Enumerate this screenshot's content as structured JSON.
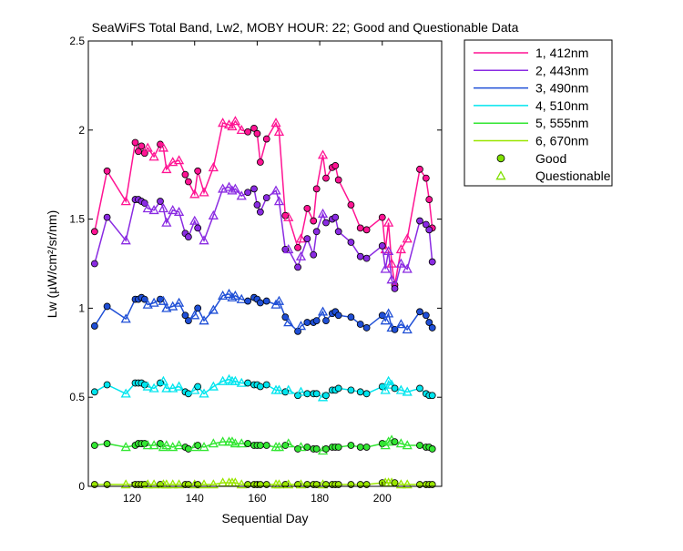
{
  "chart_data": {
    "type": "line",
    "title": "SeaWiFS Total Band,  Lw2, MOBY HOUR: 22;  Good and Questionable Data",
    "xlabel": "Sequential Day",
    "ylabel": "Lw (µW/cm²/sr/nm)",
    "xlim": [
      106,
      219
    ],
    "ylim": [
      0,
      2.5
    ],
    "xticks": [
      120,
      140,
      160,
      180,
      200
    ],
    "xtick_labels": [
      "120",
      "140",
      "160",
      "180",
      "200"
    ],
    "yticks": [
      0,
      0.5,
      1,
      1.5,
      2,
      2.5
    ],
    "ytick_labels": [
      "0",
      "0.5",
      "1",
      "1.5",
      "2",
      "2.5"
    ],
    "grid": false,
    "legend_position": "outside-right",
    "x": [
      108,
      112,
      118,
      121,
      122,
      123,
      124,
      125,
      127,
      129,
      130,
      131,
      133,
      135,
      137,
      138,
      140,
      141,
      143,
      146,
      149,
      151,
      152,
      153,
      155,
      157,
      159,
      160,
      161,
      163,
      166,
      167,
      169,
      170,
      173,
      174,
      176,
      178,
      179,
      181,
      182,
      184,
      185,
      186,
      190,
      193,
      195,
      200,
      201,
      202,
      203,
      204,
      206,
      208,
      212,
      214,
      215,
      216
    ],
    "series": [
      {
        "name": "1, 412nm",
        "color": "#ff1493",
        "values": [
          1.43,
          1.77,
          1.6,
          1.93,
          1.88,
          1.91,
          1.87,
          1.9,
          1.85,
          1.92,
          1.9,
          1.78,
          1.82,
          1.83,
          1.75,
          1.71,
          1.64,
          1.77,
          1.65,
          1.79,
          2.04,
          2.03,
          2.02,
          2.05,
          2.0,
          1.99,
          2.01,
          1.98,
          1.82,
          1.95,
          2.04,
          1.99,
          1.52,
          1.51,
          1.34,
          1.39,
          1.56,
          1.49,
          1.67,
          1.86,
          1.73,
          1.79,
          1.8,
          1.72,
          1.58,
          1.45,
          1.44,
          1.51,
          1.33,
          1.48,
          1.25,
          1.13,
          1.33,
          1.39,
          1.78,
          1.73,
          1.61,
          1.45
        ]
      },
      {
        "name": "2, 443nm",
        "color": "#8a2be2",
        "values": [
          1.25,
          1.51,
          1.38,
          1.61,
          1.61,
          1.6,
          1.59,
          1.56,
          1.55,
          1.6,
          1.56,
          1.48,
          1.55,
          1.54,
          1.42,
          1.4,
          1.49,
          1.45,
          1.38,
          1.52,
          1.67,
          1.68,
          1.66,
          1.67,
          1.63,
          1.65,
          1.67,
          1.58,
          1.54,
          1.62,
          1.66,
          1.6,
          1.33,
          1.33,
          1.23,
          1.29,
          1.39,
          1.3,
          1.43,
          1.53,
          1.48,
          1.5,
          1.51,
          1.43,
          1.37,
          1.29,
          1.28,
          1.35,
          1.22,
          1.32,
          1.16,
          1.11,
          1.25,
          1.22,
          1.49,
          1.47,
          1.44,
          1.26
        ]
      },
      {
        "name": "3, 490nm",
        "color": "#1f4fd6",
        "values": [
          0.9,
          1.01,
          0.94,
          1.05,
          1.05,
          1.06,
          1.05,
          1.02,
          1.03,
          1.05,
          1.04,
          1.0,
          1.01,
          1.03,
          0.96,
          0.93,
          0.96,
          1.0,
          0.93,
          0.99,
          1.07,
          1.08,
          1.06,
          1.07,
          1.05,
          1.04,
          1.06,
          1.05,
          1.03,
          1.04,
          1.02,
          1.04,
          0.95,
          0.92,
          0.87,
          0.9,
          0.92,
          0.92,
          0.93,
          0.98,
          0.93,
          0.97,
          0.98,
          0.96,
          0.95,
          0.91,
          0.89,
          0.96,
          0.93,
          0.97,
          0.89,
          0.88,
          0.91,
          0.88,
          0.98,
          0.96,
          0.92,
          0.89
        ]
      },
      {
        "name": "4, 510nm",
        "color": "#00e5ee",
        "values": [
          0.53,
          0.57,
          0.52,
          0.58,
          0.58,
          0.58,
          0.57,
          0.56,
          0.55,
          0.58,
          0.59,
          0.55,
          0.55,
          0.56,
          0.53,
          0.52,
          0.54,
          0.56,
          0.52,
          0.56,
          0.59,
          0.6,
          0.59,
          0.59,
          0.58,
          0.58,
          0.57,
          0.57,
          0.56,
          0.57,
          0.54,
          0.54,
          0.53,
          0.54,
          0.51,
          0.53,
          0.52,
          0.52,
          0.52,
          0.5,
          0.51,
          0.54,
          0.54,
          0.55,
          0.54,
          0.53,
          0.52,
          0.56,
          0.54,
          0.59,
          0.57,
          0.55,
          0.54,
          0.53,
          0.55,
          0.52,
          0.51,
          0.51
        ]
      },
      {
        "name": "5, 555nm",
        "color": "#33e633",
        "values": [
          0.23,
          0.24,
          0.22,
          0.23,
          0.24,
          0.24,
          0.24,
          0.23,
          0.23,
          0.24,
          0.22,
          0.23,
          0.22,
          0.23,
          0.22,
          0.21,
          0.22,
          0.23,
          0.22,
          0.24,
          0.25,
          0.25,
          0.25,
          0.24,
          0.24,
          0.24,
          0.23,
          0.23,
          0.23,
          0.23,
          0.22,
          0.22,
          0.23,
          0.24,
          0.21,
          0.22,
          0.22,
          0.21,
          0.21,
          0.2,
          0.21,
          0.22,
          0.22,
          0.22,
          0.23,
          0.22,
          0.22,
          0.24,
          0.23,
          0.25,
          0.26,
          0.25,
          0.24,
          0.23,
          0.23,
          0.22,
          0.22,
          0.21
        ]
      },
      {
        "name": "6, 670nm",
        "color": "#9ae600",
        "values": [
          0.01,
          0.01,
          0.01,
          0.01,
          0.01,
          0.01,
          0.01,
          0.01,
          0.01,
          0.01,
          0.01,
          0.01,
          0.01,
          0.01,
          0.01,
          0.01,
          0.01,
          0.01,
          0.01,
          0.01,
          0.02,
          0.02,
          0.02,
          0.02,
          0.01,
          0.01,
          0.01,
          0.01,
          0.01,
          0.01,
          0.01,
          0.01,
          0.01,
          0.01,
          0.01,
          0.01,
          0.01,
          0.01,
          0.01,
          0.01,
          0.01,
          0.01,
          0.01,
          0.01,
          0.01,
          0.01,
          0.01,
          0.02,
          0.02,
          0.02,
          0.02,
          0.02,
          0.01,
          0.01,
          0.01,
          0.01,
          0.01,
          0.01
        ]
      }
    ],
    "quality": [
      "G",
      "G",
      "Q",
      "G",
      "G",
      "G",
      "G",
      "Q",
      "Q",
      "G",
      "Q",
      "Q",
      "Q",
      "Q",
      "G",
      "G",
      "Q",
      "G",
      "Q",
      "Q",
      "Q",
      "Q",
      "Q",
      "Q",
      "Q",
      "G",
      "G",
      "G",
      "G",
      "G",
      "Q",
      "Q",
      "G",
      "Q",
      "G",
      "Q",
      "G",
      "G",
      "G",
      "Q",
      "G",
      "G",
      "G",
      "G",
      "G",
      "G",
      "G",
      "G",
      "Q",
      "Q",
      "Q",
      "G",
      "Q",
      "Q",
      "G",
      "G",
      "G",
      "G"
    ],
    "quality_legend": {
      "G": "Good",
      "Q": "Questionable"
    },
    "legend": [
      "1, 412nm",
      "2, 443nm",
      "3, 490nm",
      "4, 510nm",
      "5, 555nm",
      "6, 670nm",
      "Good",
      "Questionable"
    ],
    "marker_colors": {
      "good_face": "#22c3c3",
      "good_legend_face": "#7fe000",
      "questionable_legend_edge": "#7fe000"
    }
  }
}
